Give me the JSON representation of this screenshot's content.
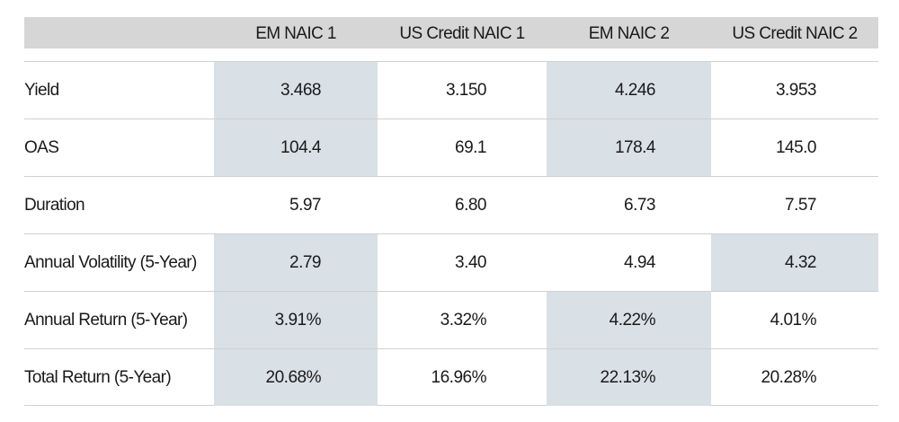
{
  "header": {
    "columns": [
      "EM NAIC 1",
      "US Credit NAIC 1",
      "EM NAIC 2",
      "US Credit NAIC 2"
    ]
  },
  "rows": [
    {
      "label": "Yield",
      "values": [
        "3.468",
        "3.150",
        "4.246",
        "3.953"
      ],
      "highlight": [
        true,
        false,
        true,
        false
      ]
    },
    {
      "label": "OAS",
      "values": [
        "104.4",
        "69.1",
        "178.4",
        "145.0"
      ],
      "highlight": [
        true,
        false,
        true,
        false
      ]
    },
    {
      "label": "Duration",
      "values": [
        "5.97",
        "6.80",
        "6.73",
        "7.57"
      ],
      "highlight": [
        false,
        false,
        false,
        false
      ]
    },
    {
      "label": "Annual Volatility (5-Year)",
      "values": [
        "2.79",
        "3.40",
        "4.94",
        "4.32"
      ],
      "highlight": [
        true,
        false,
        false,
        true
      ]
    },
    {
      "label": "Annual Return (5-Year)",
      "values": [
        "3.91%",
        "3.32%",
        "4.22%",
        "4.01%"
      ],
      "highlight": [
        true,
        false,
        true,
        false
      ]
    },
    {
      "label": "Total Return (5-Year)",
      "values": [
        "20.68%",
        "16.96%",
        "22.13%",
        "20.28%"
      ],
      "highlight": [
        true,
        false,
        true,
        false
      ]
    }
  ],
  "colors": {
    "header_bg": "#d6d6d6",
    "highlight_bg": "#d9e0e6",
    "rule": "#d0d0d0"
  }
}
